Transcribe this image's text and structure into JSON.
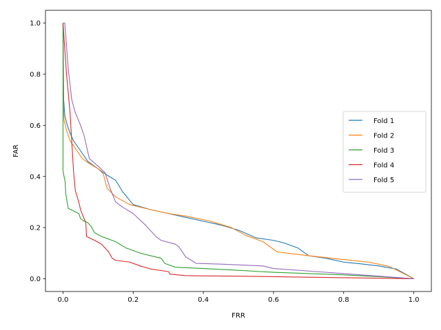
{
  "chart_data": {
    "type": "line",
    "title": "",
    "xlabel": "FRR",
    "ylabel": "FAR",
    "xlim": [
      -0.05,
      1.05
    ],
    "ylim": [
      -0.05,
      1.05
    ],
    "xticks": [
      0.0,
      0.2,
      0.4,
      0.6,
      0.8,
      1.0
    ],
    "yticks": [
      0.0,
      0.2,
      0.4,
      0.6,
      0.8,
      1.0
    ],
    "xtick_labels": [
      "0.0",
      "0.2",
      "0.4",
      "0.6",
      "0.8",
      "1.0"
    ],
    "ytick_labels": [
      "0.0",
      "0.2",
      "0.4",
      "0.6",
      "0.8",
      "1.0"
    ],
    "grid": false,
    "legend_position": "center-right",
    "series": [
      {
        "name": "Fold 1",
        "color": "#1f77b4",
        "points": [
          [
            0.0,
            1.0
          ],
          [
            0.002,
            0.7
          ],
          [
            0.005,
            0.64
          ],
          [
            0.01,
            0.61
          ],
          [
            0.02,
            0.57
          ],
          [
            0.03,
            0.54
          ],
          [
            0.05,
            0.5
          ],
          [
            0.07,
            0.46
          ],
          [
            0.1,
            0.43
          ],
          [
            0.12,
            0.41
          ],
          [
            0.15,
            0.385
          ],
          [
            0.17,
            0.34
          ],
          [
            0.2,
            0.29
          ],
          [
            0.25,
            0.27
          ],
          [
            0.3,
            0.255
          ],
          [
            0.35,
            0.24
          ],
          [
            0.4,
            0.225
          ],
          [
            0.45,
            0.21
          ],
          [
            0.5,
            0.19
          ],
          [
            0.55,
            0.16
          ],
          [
            0.6,
            0.15
          ],
          [
            0.63,
            0.14
          ],
          [
            0.67,
            0.12
          ],
          [
            0.7,
            0.09
          ],
          [
            0.75,
            0.08
          ],
          [
            0.8,
            0.065
          ],
          [
            0.85,
            0.058
          ],
          [
            0.9,
            0.05
          ],
          [
            0.95,
            0.038
          ],
          [
            1.0,
            0.0
          ]
        ]
      },
      {
        "name": "Fold 2",
        "color": "#ff7f0e",
        "points": [
          [
            0.0,
            1.0
          ],
          [
            0.001,
            0.7
          ],
          [
            0.003,
            0.62
          ],
          [
            0.01,
            0.58
          ],
          [
            0.02,
            0.54
          ],
          [
            0.04,
            0.5
          ],
          [
            0.055,
            0.47
          ],
          [
            0.07,
            0.455
          ],
          [
            0.1,
            0.43
          ],
          [
            0.115,
            0.41
          ],
          [
            0.125,
            0.355
          ],
          [
            0.15,
            0.32
          ],
          [
            0.19,
            0.29
          ],
          [
            0.25,
            0.27
          ],
          [
            0.3,
            0.255
          ],
          [
            0.35,
            0.245
          ],
          [
            0.42,
            0.225
          ],
          [
            0.48,
            0.2
          ],
          [
            0.52,
            0.17
          ],
          [
            0.57,
            0.145
          ],
          [
            0.6,
            0.115
          ],
          [
            0.61,
            0.105
          ],
          [
            0.65,
            0.098
          ],
          [
            0.7,
            0.09
          ],
          [
            0.8,
            0.075
          ],
          [
            0.87,
            0.065
          ],
          [
            0.93,
            0.048
          ],
          [
            1.0,
            0.0
          ]
        ]
      },
      {
        "name": "Fold 3",
        "color": "#2ca02c",
        "points": [
          [
            0.0,
            1.0
          ],
          [
            0.0,
            0.42
          ],
          [
            0.003,
            0.4
          ],
          [
            0.006,
            0.38
          ],
          [
            0.008,
            0.33
          ],
          [
            0.015,
            0.275
          ],
          [
            0.03,
            0.265
          ],
          [
            0.045,
            0.255
          ],
          [
            0.05,
            0.235
          ],
          [
            0.06,
            0.225
          ],
          [
            0.07,
            0.22
          ],
          [
            0.08,
            0.205
          ],
          [
            0.09,
            0.18
          ],
          [
            0.11,
            0.165
          ],
          [
            0.15,
            0.145
          ],
          [
            0.18,
            0.12
          ],
          [
            0.22,
            0.1
          ],
          [
            0.25,
            0.09
          ],
          [
            0.28,
            0.08
          ],
          [
            0.29,
            0.06
          ],
          [
            0.3,
            0.055
          ],
          [
            0.32,
            0.045
          ],
          [
            0.4,
            0.04
          ],
          [
            0.5,
            0.033
          ],
          [
            0.6,
            0.025
          ],
          [
            0.7,
            0.02
          ],
          [
            0.8,
            0.015
          ],
          [
            0.9,
            0.008
          ],
          [
            1.0,
            0.0
          ]
        ]
      },
      {
        "name": "Fold 4",
        "color": "#d62728",
        "points": [
          [
            0.0,
            1.0
          ],
          [
            0.01,
            0.8
          ],
          [
            0.02,
            0.65
          ],
          [
            0.03,
            0.42
          ],
          [
            0.035,
            0.345
          ],
          [
            0.045,
            0.3
          ],
          [
            0.05,
            0.27
          ],
          [
            0.06,
            0.235
          ],
          [
            0.065,
            0.22
          ],
          [
            0.067,
            0.165
          ],
          [
            0.09,
            0.15
          ],
          [
            0.11,
            0.135
          ],
          [
            0.13,
            0.105
          ],
          [
            0.14,
            0.08
          ],
          [
            0.15,
            0.072
          ],
          [
            0.19,
            0.065
          ],
          [
            0.22,
            0.05
          ],
          [
            0.25,
            0.038
          ],
          [
            0.3,
            0.028
          ],
          [
            0.305,
            0.018
          ],
          [
            0.35,
            0.012
          ],
          [
            0.4,
            0.011
          ],
          [
            0.5,
            0.01
          ],
          [
            0.6,
            0.008
          ],
          [
            0.7,
            0.006
          ],
          [
            0.8,
            0.004
          ],
          [
            0.9,
            0.002
          ],
          [
            1.0,
            0.0
          ]
        ]
      },
      {
        "name": "Fold 5",
        "color": "#9467bd",
        "points": [
          [
            0.0,
            1.0
          ],
          [
            0.005,
            1.0
          ],
          [
            0.015,
            0.82
          ],
          [
            0.025,
            0.7
          ],
          [
            0.035,
            0.65
          ],
          [
            0.05,
            0.6
          ],
          [
            0.06,
            0.56
          ],
          [
            0.075,
            0.47
          ],
          [
            0.1,
            0.44
          ],
          [
            0.12,
            0.415
          ],
          [
            0.135,
            0.35
          ],
          [
            0.15,
            0.3
          ],
          [
            0.17,
            0.28
          ],
          [
            0.2,
            0.255
          ],
          [
            0.235,
            0.21
          ],
          [
            0.265,
            0.165
          ],
          [
            0.28,
            0.15
          ],
          [
            0.32,
            0.135
          ],
          [
            0.33,
            0.125
          ],
          [
            0.35,
            0.085
          ],
          [
            0.38,
            0.06
          ],
          [
            0.45,
            0.057
          ],
          [
            0.57,
            0.05
          ],
          [
            0.6,
            0.04
          ],
          [
            0.7,
            0.03
          ],
          [
            0.8,
            0.02
          ],
          [
            0.9,
            0.01
          ],
          [
            1.0,
            0.0
          ]
        ]
      }
    ]
  }
}
